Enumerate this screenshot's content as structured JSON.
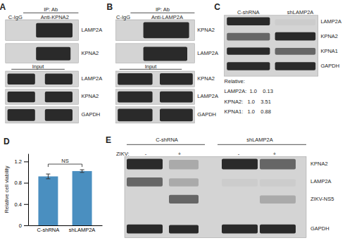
{
  "chart_data": {
    "type": "bar",
    "categories": [
      "C-shRNA",
      "shLAMP2A"
    ],
    "values": [
      0.92,
      1.02
    ],
    "errors": [
      0.045,
      0.025
    ],
    "color": "#4a8fc0",
    "ylim": [
      0,
      1.35
    ],
    "yticks": [
      0,
      0.4,
      0.8,
      1.2
    ],
    "ylabel": "Relative cell viability",
    "grid": false,
    "annotations": [
      "A",
      "IP: Ab",
      "C-IgG",
      "Anti-KPNA2",
      "LAMP2A",
      "KPNA2",
      "Input",
      "LAMP2A",
      "KPNA2",
      "GAPDH",
      "B",
      "IP: Ab",
      "C-IgG",
      "Anti-LAMP2A",
      "KPNA2",
      "LAMP2A",
      "Input",
      "KPNA2",
      "LAMP2A",
      "GAPDH",
      "C",
      "C-shRNA",
      "shLAMP2A",
      "LAMP2A",
      "KPNA2",
      "KPNA1",
      "GAPDH",
      "Relative:",
      "LAMP2A:  1.0    0.13",
      "KPNA2:   1.0    3.51",
      "KPNA1:   1.0    0.88",
      "D",
      "NS",
      "E",
      "C-shRNA",
      "shLAMP2A",
      "ZIKV:",
      "-",
      "+",
      "-",
      "+",
      "KPNA2",
      "LAMP2A",
      "ZIKV-NS5",
      "GAPDH"
    ]
  }
}
